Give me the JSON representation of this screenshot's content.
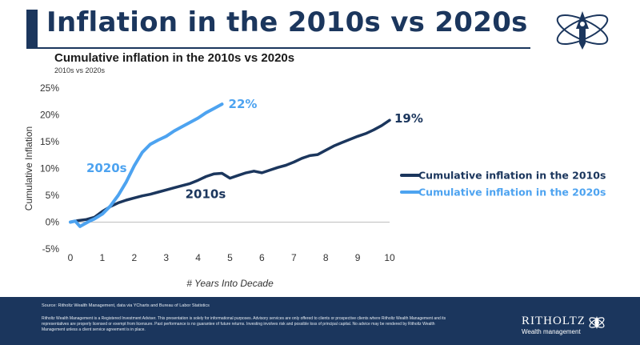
{
  "header": {
    "title": "Inflation in the 2010s vs 2020s",
    "subtitle": "Cumulative inflation in the 2010s vs 2020s",
    "small_subtitle": "2010s vs 2020s"
  },
  "colors": {
    "navy": "#1b365d",
    "series_2010s": "#1b365d",
    "series_2020s": "#4da3f0"
  },
  "icons": {
    "header_logo": "ritholtz-rocket-orbit-icon",
    "footer_logo": "ritholtz-orbit-emblem-icon"
  },
  "chart_data": {
    "type": "line",
    "title": "",
    "xlabel": "# Years Into Decade",
    "ylabel": "Cumulative Inflation",
    "xlim": [
      0,
      10
    ],
    "ylim": [
      -5,
      25
    ],
    "x_ticks": [
      0,
      1,
      2,
      3,
      4,
      5,
      6,
      7,
      8,
      9,
      10
    ],
    "y_ticks": [
      -5,
      0,
      5,
      10,
      15,
      20,
      25
    ],
    "y_tick_labels": [
      "-5%",
      "0%",
      "5%",
      "10%",
      "15%",
      "20%",
      "25%"
    ],
    "grid": false,
    "legend_position": "right",
    "series": [
      {
        "name": "Cumulative inflation in the 2010s",
        "label": "2010s",
        "end_label": "19%",
        "color": "#1b365d",
        "points": [
          [
            0,
            0
          ],
          [
            0.25,
            0.3
          ],
          [
            0.5,
            0.5
          ],
          [
            0.75,
            0.9
          ],
          [
            1.0,
            2.0
          ],
          [
            1.25,
            2.9
          ],
          [
            1.5,
            3.6
          ],
          [
            1.75,
            4.1
          ],
          [
            2.0,
            4.5
          ],
          [
            2.25,
            4.9
          ],
          [
            2.5,
            5.2
          ],
          [
            2.75,
            5.6
          ],
          [
            3.0,
            6.0
          ],
          [
            3.25,
            6.4
          ],
          [
            3.5,
            6.8
          ],
          [
            3.75,
            7.2
          ],
          [
            4.0,
            7.8
          ],
          [
            4.25,
            8.5
          ],
          [
            4.5,
            9.0
          ],
          [
            4.75,
            9.1
          ],
          [
            5.0,
            8.2
          ],
          [
            5.25,
            8.7
          ],
          [
            5.5,
            9.2
          ],
          [
            5.75,
            9.5
          ],
          [
            6.0,
            9.2
          ],
          [
            6.25,
            9.7
          ],
          [
            6.5,
            10.2
          ],
          [
            6.75,
            10.6
          ],
          [
            7.0,
            11.2
          ],
          [
            7.25,
            11.9
          ],
          [
            7.5,
            12.4
          ],
          [
            7.75,
            12.6
          ],
          [
            8.0,
            13.4
          ],
          [
            8.25,
            14.2
          ],
          [
            8.5,
            14.8
          ],
          [
            8.75,
            15.4
          ],
          [
            9.0,
            16.0
          ],
          [
            9.25,
            16.5
          ],
          [
            9.5,
            17.2
          ],
          [
            9.75,
            18.0
          ],
          [
            10.0,
            19.0
          ]
        ]
      },
      {
        "name": "Cumulative inflation in the 2020s",
        "label": "2020s",
        "end_label": "22%",
        "color": "#4da3f0",
        "points": [
          [
            0,
            0
          ],
          [
            0.15,
            0.2
          ],
          [
            0.3,
            -0.8
          ],
          [
            0.45,
            -0.3
          ],
          [
            0.6,
            0.2
          ],
          [
            0.75,
            0.6
          ],
          [
            1.0,
            1.5
          ],
          [
            1.25,
            3.0
          ],
          [
            1.5,
            5.0
          ],
          [
            1.75,
            7.5
          ],
          [
            2.0,
            10.5
          ],
          [
            2.25,
            13.0
          ],
          [
            2.5,
            14.5
          ],
          [
            2.75,
            15.3
          ],
          [
            3.0,
            16.0
          ],
          [
            3.25,
            17.0
          ],
          [
            3.5,
            17.8
          ],
          [
            3.75,
            18.6
          ],
          [
            4.0,
            19.4
          ],
          [
            4.25,
            20.4
          ],
          [
            4.5,
            21.2
          ],
          [
            4.75,
            22.0
          ]
        ]
      }
    ]
  },
  "footer": {
    "source": "Source: Ritholtz Wealth Management, data via YCharts and Bureau of Labor Statistics",
    "disclaimer": "Ritholtz Wealth Management is a Registered Investment Adviser. This presentation is solely for informational purposes. Advisory services are only offered to clients or prospective clients where Ritholtz Wealth Management and its representatives are properly licensed or exempt from licensure. Past performance is no guarantee of future returns. Investing involves risk and possible loss of principal capital. No advice may be rendered by Ritholtz Wealth Management unless a client service agreement is in place.",
    "brand": "RITHOLTZ",
    "brand_sub": "Wealth management"
  }
}
